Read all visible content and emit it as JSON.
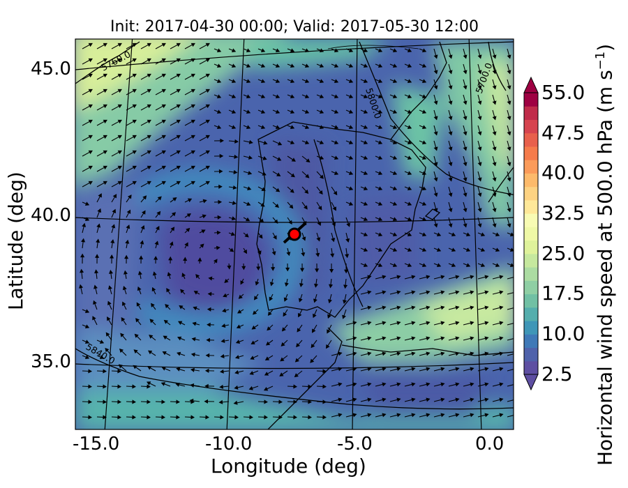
{
  "title": "Init: 2017-04-30 00:00; Valid: 2017-05-30 12:00",
  "xlabel": "Longitude (deg)",
  "ylabel": "Latitude (deg)",
  "x_ticks": [
    "-15.0",
    "-10.0",
    "-5.0",
    "0.0"
  ],
  "y_ticks": [
    "45.0",
    "40.0",
    "35.0"
  ],
  "colorbar": {
    "label": "Horizontal wind speed at 500.0 hPa (m s",
    "label_exp": "−1",
    "label_end": ")",
    "ticks": [
      "2.5",
      "10.0",
      "17.5",
      "25.0",
      "32.5",
      "40.0",
      "47.5",
      "55.0"
    ],
    "range": [
      2.5,
      55.0
    ],
    "step": 2.5,
    "extend": "both"
  },
  "contour_labels": [
    "5760.0",
    "5700.0",
    "5800.0",
    "5840.0"
  ],
  "marker": {
    "lon": -7.6,
    "lat": 39.3,
    "color": "#ff0000"
  },
  "colors": {
    "low": "#5e4fa2",
    "mid_blue": "#3288bd",
    "teal": "#66c2a5",
    "light_green": "#abdda4",
    "yellow": "#e6f598",
    "high": "#9e0142"
  },
  "chart_data": {
    "type": "heatmap",
    "title": "Init: 2017-04-30 00:00; Valid: 2017-05-30 12:00",
    "xlabel": "Longitude (deg)",
    "ylabel": "Latitude (deg)",
    "xlim": [
      -16,
      0.3
    ],
    "ylim": [
      32.7,
      46.2
    ],
    "colorbar_range": [
      2.5,
      55.0
    ],
    "field": "Horizontal wind speed at 500.0 hPa",
    "units": "m s-1",
    "contours": [
      5700.0,
      5760.0,
      5800.0,
      5840.0
    ]
  }
}
